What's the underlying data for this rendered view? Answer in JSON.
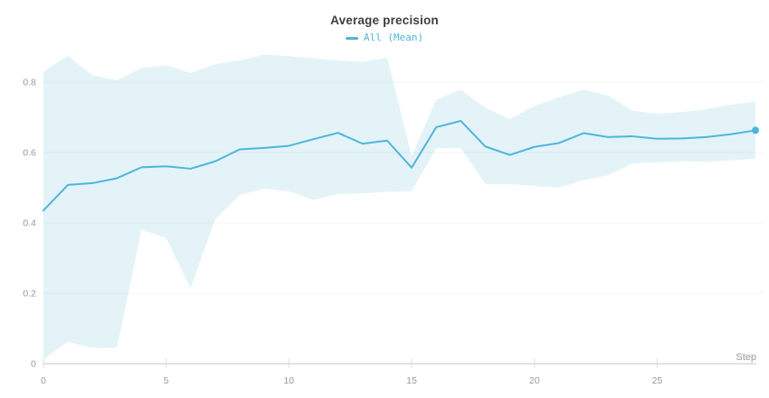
{
  "panel": {
    "title": "Average precision"
  },
  "colors": {
    "accent": "#4fb6d9",
    "band": "#e4f3f8",
    "grid": "rgba(70,90,100,0.06)",
    "axis_line": "#e2e2e2",
    "tick_mark": "#dddddd",
    "tick_label": "#98999b",
    "title_text": "#3b3f42",
    "background": "#ffffff"
  },
  "chart_data": {
    "type": "line",
    "title": "Average precision",
    "xlabel": "Step",
    "ylabel": "",
    "xlim": [
      0,
      29.6
    ],
    "ylim": [
      0,
      0.9
    ],
    "x_ticks": [
      0,
      5,
      10,
      15,
      20,
      25
    ],
    "y_ticks": [
      0,
      0.2,
      0.4,
      0.6,
      0.8
    ],
    "grid": "horizontal",
    "legend_position": "top-center",
    "x": [
      0,
      1,
      2,
      3,
      4,
      5,
      6,
      7,
      8,
      9,
      10,
      11,
      12,
      13,
      14,
      15,
      16,
      17,
      18,
      19,
      20,
      21,
      22,
      23,
      24,
      25,
      26,
      27,
      28,
      29
    ],
    "series": [
      {
        "name": "All (Mean)",
        "style": "line-with-band",
        "end_marker": true,
        "mean": [
          0.435,
          0.508,
          0.513,
          0.527,
          0.558,
          0.561,
          0.554,
          0.575,
          0.609,
          0.613,
          0.619,
          0.638,
          0.656,
          0.625,
          0.634,
          0.557,
          0.672,
          0.69,
          0.617,
          0.593,
          0.616,
          0.627,
          0.655,
          0.644,
          0.646,
          0.639,
          0.64,
          0.644,
          0.652,
          0.663
        ],
        "band_upper": [
          0.83,
          0.875,
          0.82,
          0.805,
          0.84,
          0.848,
          0.826,
          0.851,
          0.862,
          0.878,
          0.874,
          0.868,
          0.862,
          0.857,
          0.87,
          0.59,
          0.75,
          0.779,
          0.727,
          0.695,
          0.732,
          0.757,
          0.779,
          0.762,
          0.719,
          0.71,
          0.715,
          0.723,
          0.736,
          0.745
        ],
        "band_lower": [
          0.012,
          0.062,
          0.045,
          0.046,
          0.381,
          0.357,
          0.215,
          0.411,
          0.48,
          0.497,
          0.49,
          0.465,
          0.482,
          0.484,
          0.488,
          0.49,
          0.612,
          0.613,
          0.51,
          0.51,
          0.505,
          0.5,
          0.522,
          0.535,
          0.569,
          0.572,
          0.575,
          0.574,
          0.578,
          0.582
        ]
      }
    ]
  }
}
